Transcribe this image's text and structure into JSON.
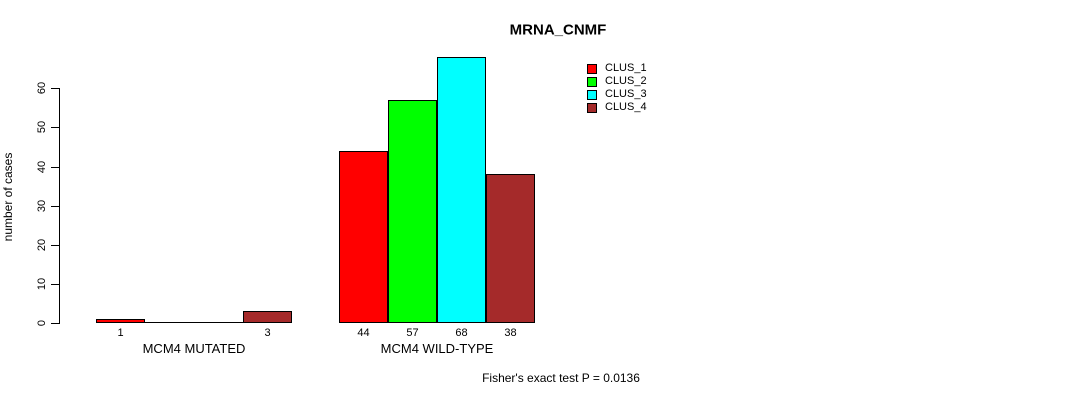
{
  "chart_data": {
    "type": "bar",
    "title": "MRNA_CNMF",
    "ylabel": "number of cases",
    "xlabel": "",
    "ylim": [
      0,
      60
    ],
    "yticks": [
      0,
      10,
      20,
      30,
      40,
      50,
      60
    ],
    "grid": false,
    "legend_position": "top-right",
    "categories": [
      "MCM4 MUTATED",
      "MCM4 WILD-TYPE"
    ],
    "series": [
      {
        "name": "CLUS_1",
        "color": "#ff0000",
        "values": [
          1,
          44
        ]
      },
      {
        "name": "CLUS_2",
        "color": "#00ff00",
        "values": [
          0,
          57
        ]
      },
      {
        "name": "CLUS_3",
        "color": "#00ffff",
        "values": [
          0,
          68
        ]
      },
      {
        "name": "CLUS_4",
        "color": "#a52a2a",
        "values": [
          3,
          38
        ]
      }
    ],
    "bar_value_labels": {
      "MCM4 MUTATED": [
        "1",
        "",
        "",
        "3"
      ],
      "MCM4 WILD-TYPE": [
        "44",
        "57",
        "68",
        "38"
      ]
    },
    "footer": "Fisher's exact test P = 0.0136"
  }
}
